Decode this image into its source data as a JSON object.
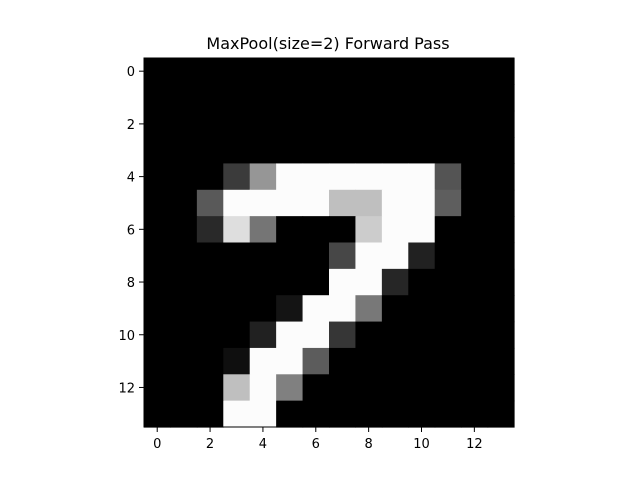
{
  "chart_data": {
    "type": "heatmap",
    "title": "MaxPool(size=2) Forward Pass",
    "xlabel": "",
    "ylabel": "",
    "colormap": "gray",
    "value_range": [
      0,
      1
    ],
    "rows": 14,
    "cols": 14,
    "x_ticks": [
      "0",
      "2",
      "4",
      "6",
      "8",
      "10",
      "12"
    ],
    "y_ticks": [
      "0",
      "2",
      "4",
      "6",
      "8",
      "10",
      "12"
    ],
    "values": [
      [
        0,
        0,
        0,
        0,
        0,
        0,
        0,
        0,
        0,
        0,
        0,
        0,
        0,
        0
      ],
      [
        0,
        0,
        0,
        0,
        0,
        0,
        0,
        0,
        0,
        0,
        0,
        0,
        0,
        0
      ],
      [
        0,
        0,
        0,
        0,
        0,
        0,
        0,
        0,
        0,
        0,
        0,
        0,
        0,
        0
      ],
      [
        0,
        0,
        0,
        0,
        0,
        0,
        0,
        0,
        0,
        0,
        0,
        0,
        0,
        0
      ],
      [
        0,
        0,
        0,
        0.23,
        0.59,
        0.99,
        0.99,
        0.99,
        0.99,
        0.99,
        0.99,
        0.33,
        0,
        0
      ],
      [
        0,
        0,
        0.35,
        0.99,
        0.99,
        0.99,
        0.99,
        0.75,
        0.75,
        0.99,
        0.99,
        0.37,
        0,
        0
      ],
      [
        0,
        0,
        0.16,
        0.87,
        0.46,
        0,
        0,
        0,
        0.8,
        0.99,
        0.99,
        0,
        0,
        0
      ],
      [
        0,
        0,
        0,
        0,
        0,
        0,
        0,
        0.28,
        0.99,
        0.99,
        0.13,
        0,
        0,
        0
      ],
      [
        0,
        0,
        0,
        0,
        0,
        0,
        0,
        0.99,
        0.99,
        0.15,
        0,
        0,
        0,
        0
      ],
      [
        0,
        0,
        0,
        0,
        0,
        0.08,
        0.99,
        0.99,
        0.47,
        0,
        0,
        0,
        0,
        0
      ],
      [
        0,
        0,
        0,
        0,
        0.13,
        0.99,
        0.99,
        0.21,
        0,
        0,
        0,
        0,
        0,
        0
      ],
      [
        0,
        0,
        0,
        0.06,
        0.99,
        0.99,
        0.36,
        0,
        0,
        0,
        0,
        0,
        0,
        0
      ],
      [
        0,
        0,
        0,
        0.75,
        0.99,
        0.5,
        0,
        0,
        0,
        0,
        0,
        0,
        0,
        0
      ],
      [
        0,
        0,
        0,
        0.99,
        0.99,
        0,
        0,
        0,
        0,
        0,
        0,
        0,
        0,
        0
      ]
    ]
  }
}
